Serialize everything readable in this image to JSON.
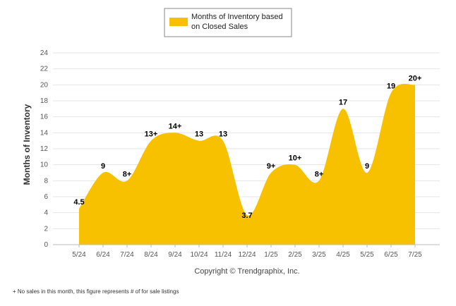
{
  "chart_data": {
    "type": "area",
    "categories": [
      "5/24",
      "6/24",
      "7/24",
      "8/24",
      "9/24",
      "10/24",
      "11/24",
      "12/24",
      "1/25",
      "2/25",
      "3/25",
      "4/25",
      "5/25",
      "6/25",
      "7/25"
    ],
    "series": [
      {
        "name": "Months of Inventory based on Closed Sales",
        "values": [
          4.5,
          9,
          8,
          13,
          14,
          13,
          13,
          3.7,
          9,
          10,
          8,
          17,
          9,
          19,
          20
        ],
        "labels": [
          "4.5",
          "9",
          "8+",
          "13+",
          "14+",
          "13",
          "13",
          "3.7",
          "9+",
          "10+",
          "8+",
          "17",
          "9",
          "19",
          "20+"
        ],
        "color": "#F7C100"
      }
    ],
    "ylabel": "Months of Inventory",
    "ylim": [
      0,
      24
    ],
    "yticks": [
      0,
      2,
      4,
      6,
      8,
      10,
      12,
      14,
      16,
      18,
      20,
      22,
      24
    ],
    "grid": true,
    "legend": "top-center"
  },
  "legend_label_lines": [
    "Months of Inventory based",
    "on Closed Sales"
  ],
  "copyright": "Copyright © Trendgraphix, Inc.",
  "footnote": "+  No sales in this month, this figure represents # of for sale listings",
  "colors": {
    "area": "#F7C100",
    "grid": "#e4e4e4",
    "axis": "#bbbbbb"
  }
}
